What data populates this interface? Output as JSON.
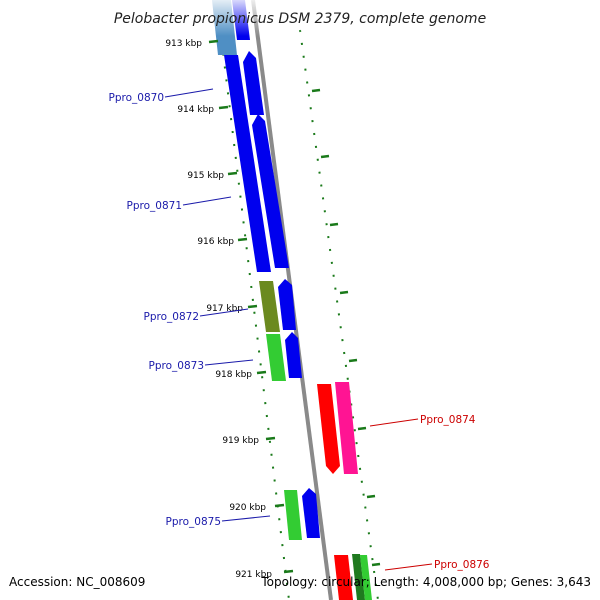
{
  "title": "Pelobacter propionicus DSM 2379, complete genome",
  "footer": {
    "accession": "Accession: NC_008609",
    "summary": "Topology: circular; Length: 4,008,000 bp; Genes: 3,643"
  },
  "colors": {
    "background": "#ffffff",
    "backbone": "#8a8a8a",
    "tick": "#1a7a1a",
    "label_forward": "#1a1aaa",
    "label_reverse": "#cc0000",
    "cds_blue": "#0000ee",
    "cds_lightblue": "#4f8fc4",
    "cds_olive": "#6b8a1f",
    "cds_green": "#33cc33",
    "cds_red": "#ff0000",
    "cds_magenta": "#ff1493",
    "cds_darkgreen": "#1f7a1f"
  },
  "ticks": [
    "913 kbp",
    "914 kbp",
    "915 kbp",
    "916 kbp",
    "917 kbp",
    "918 kbp",
    "919 kbp",
    "920 kbp",
    "921 kbp"
  ],
  "gene_labels": [
    {
      "text": "Ppro_0870",
      "strand": "forward"
    },
    {
      "text": "Ppro_0871",
      "strand": "forward"
    },
    {
      "text": "Ppro_0872",
      "strand": "forward"
    },
    {
      "text": "Ppro_0873",
      "strand": "forward"
    },
    {
      "text": "Ppro_0874",
      "strand": "reverse"
    },
    {
      "text": "Ppro_0875",
      "strand": "forward"
    },
    {
      "text": "Ppro_0876",
      "strand": "reverse"
    }
  ]
}
